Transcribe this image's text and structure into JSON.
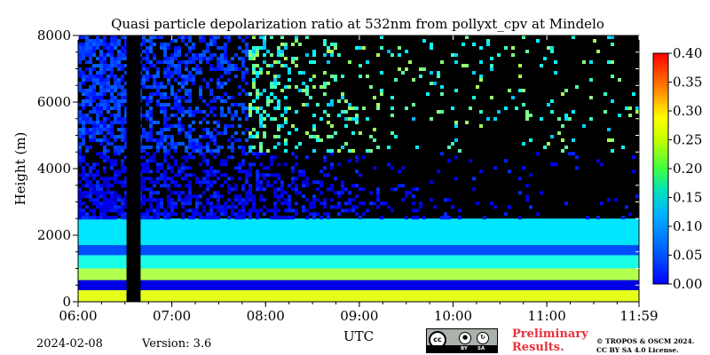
{
  "chart_data": {
    "type": "heatmap",
    "title": "Quasi particle depolarization ratio at 532nm from pollyxt_cpv at Mindelo",
    "xlabel": "UTC",
    "ylabel": "Height (m)",
    "xlim": [
      "06:00",
      "11:59"
    ],
    "ylim": [
      0,
      8000
    ],
    "x_ticks": [
      "06:00",
      "07:00",
      "08:00",
      "09:00",
      "10:00",
      "11:00",
      "11:59"
    ],
    "y_ticks": [
      "0",
      "2000",
      "4000",
      "6000",
      "8000"
    ],
    "colorbar": {
      "range": [
        0.0,
        0.4
      ],
      "ticks": [
        "0.00",
        "0.05",
        "0.10",
        "0.15",
        "0.20",
        "0.25",
        "0.30",
        "0.35",
        "0.40"
      ],
      "colormap": "jet"
    },
    "no_data_color": "#000000",
    "no_data_gap_utc": [
      "06:31",
      "06:40"
    ],
    "layers": [
      {
        "height_range_m": [
          0,
          350
        ],
        "depol": 0.24
      },
      {
        "height_range_m": [
          350,
          650
        ],
        "depol": 0.04
      },
      {
        "height_range_m": [
          650,
          1000
        ],
        "depol": 0.22
      },
      {
        "height_range_m": [
          1000,
          1400
        ],
        "depol": 0.16
      },
      {
        "height_range_m": [
          1400,
          1700
        ],
        "depol": 0.08
      },
      {
        "height_range_m": [
          1700,
          2500
        ],
        "depol": 0.14
      },
      {
        "height_range_m": [
          2500,
          4500
        ],
        "depol": 0.05
      },
      {
        "height_range_m": [
          4500,
          8000
        ],
        "depol": 0.17
      }
    ]
  },
  "footer": {
    "date": "2024-02-08",
    "version": "Version: 3.6",
    "preliminary_line1": "Preliminary",
    "preliminary_line2": "Results.",
    "copyright_line1": "© TROPOS & OSCM 2024.",
    "copyright_line2": "CC BY SA 4.0 License.",
    "license_badge": {
      "cc": "cc",
      "by": "BY",
      "sa": "SA"
    }
  },
  "colors": {
    "preliminary": "#e8303a",
    "background": "#ffffff"
  }
}
